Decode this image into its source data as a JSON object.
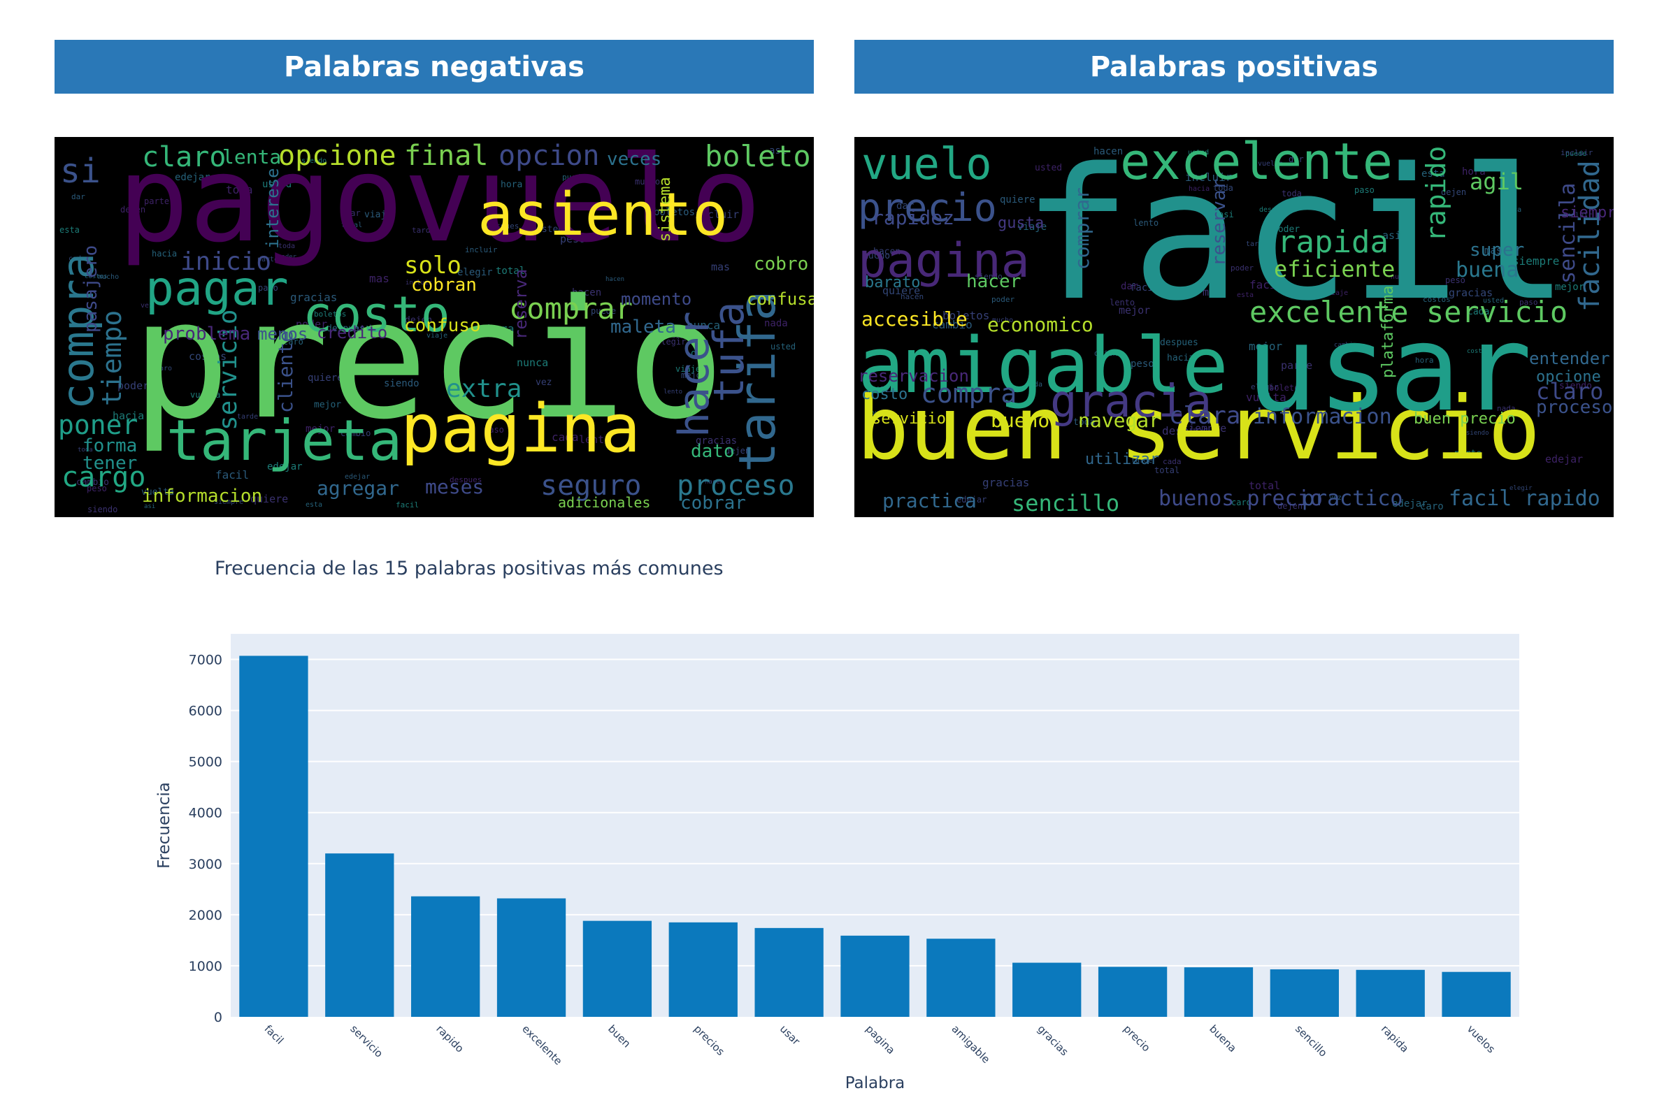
{
  "panels": {
    "negative_title": "Palabras negativas",
    "positive_title": "Palabras positivas"
  },
  "wordclouds": {
    "negative": [
      {
        "t": "pagovuelo",
        "c": "#440154"
      },
      {
        "t": "precio",
        "c": "#5ec962"
      },
      {
        "t": "asiento",
        "c": "#fde725"
      },
      {
        "t": "pagina",
        "c": "#fde725"
      },
      {
        "t": "tarjeta",
        "c": "#35b779"
      },
      {
        "t": "costo",
        "c": "#35b779"
      },
      {
        "t": "pagar",
        "c": "#21a585"
      },
      {
        "t": "compra",
        "c": "#2a788e"
      },
      {
        "t": "tarifa",
        "c": "#31688e"
      },
      {
        "t": "hacer",
        "c": "#3b528b"
      },
      {
        "t": "tufa",
        "c": "#3b528b"
      },
      {
        "t": "comprar",
        "c": "#7ad151"
      },
      {
        "t": "opcione",
        "c": "#b5de2b"
      },
      {
        "t": "final",
        "c": "#7ad151"
      },
      {
        "t": "opcion",
        "c": "#3e4a89"
      },
      {
        "t": "boleto",
        "c": "#5ec962"
      },
      {
        "t": "claro",
        "c": "#35b779"
      },
      {
        "t": "si",
        "c": "#3b528b"
      },
      {
        "t": "tiempo",
        "c": "#2c728e"
      },
      {
        "t": "servicio",
        "c": "#21918c"
      },
      {
        "t": "poner",
        "c": "#1f9e89"
      },
      {
        "t": "cargo",
        "c": "#22a884"
      },
      {
        "t": "proceso",
        "c": "#2a788e"
      },
      {
        "t": "seguro",
        "c": "#3b528b"
      },
      {
        "t": "inicio",
        "c": "#3e4a89"
      },
      {
        "t": "solo",
        "c": "#d8e219"
      },
      {
        "t": "extra",
        "c": "#21918c"
      },
      {
        "t": "informacion",
        "c": "#b5de2b"
      },
      {
        "t": "agregar",
        "c": "#31688e"
      },
      {
        "t": "meses",
        "c": "#3e4a89"
      },
      {
        "t": "cobrar",
        "c": "#2c728e"
      },
      {
        "t": "momento",
        "c": "#3e4a89"
      },
      {
        "t": "maleta",
        "c": "#31688e"
      },
      {
        "t": "dato",
        "c": "#35b779"
      },
      {
        "t": "confuso",
        "c": "#d8e219"
      },
      {
        "t": "credito",
        "c": "#482878"
      },
      {
        "t": "cobro",
        "c": "#7ad151"
      },
      {
        "t": "lenta",
        "c": "#35b779"
      },
      {
        "t": "veces",
        "c": "#2c728e"
      },
      {
        "t": "problema",
        "c": "#482878"
      },
      {
        "t": "cliente",
        "c": "#3b528b"
      },
      {
        "t": "reserva",
        "c": "#482878"
      },
      {
        "t": "tener",
        "c": "#21918c"
      },
      {
        "t": "forma",
        "c": "#21918c"
      },
      {
        "t": "cobran",
        "c": "#fde725"
      },
      {
        "t": "confusa",
        "c": "#b5de2b"
      },
      {
        "t": "menos",
        "c": "#3b528b"
      },
      {
        "t": "adicionales",
        "c": "#7ad151"
      },
      {
        "t": "pasajero",
        "c": "#3e4a89"
      },
      {
        "t": "interese",
        "c": "#2c728e"
      },
      {
        "t": "sistema",
        "c": "#b5de2b"
      }
    ],
    "positive": [
      {
        "t": "facil",
        "c": "#21918c"
      },
      {
        "t": "buen servicio",
        "c": "#d8e219"
      },
      {
        "t": "usar",
        "c": "#1f9e89"
      },
      {
        "t": "amigable",
        "c": "#22a884"
      },
      {
        "t": "excelente",
        "c": "#35b779"
      },
      {
        "t": "vuelo",
        "c": "#22a884"
      },
      {
        "t": "precio",
        "c": "#3b528b"
      },
      {
        "t": "pagina",
        "c": "#482878"
      },
      {
        "t": "gracia",
        "c": "#443983"
      },
      {
        "t": "excelente servicio",
        "c": "#5ec962"
      },
      {
        "t": "rapida",
        "c": "#35b779"
      },
      {
        "t": "eficiente",
        "c": "#7ad151"
      },
      {
        "t": "facilidad",
        "c": "#31688e"
      },
      {
        "t": "rapido",
        "c": "#35b779"
      },
      {
        "t": "agil",
        "c": "#5ec962"
      },
      {
        "t": "sencilla",
        "c": "#3e4a89"
      },
      {
        "t": "buena",
        "c": "#2a788e"
      },
      {
        "t": "super",
        "c": "#2c728e"
      },
      {
        "t": "rapidez",
        "c": "#3e4a89"
      },
      {
        "t": "reservar",
        "c": "#3b528b"
      },
      {
        "t": "comprar",
        "c": "#31688e"
      },
      {
        "t": "hacer",
        "c": "#5ec962"
      },
      {
        "t": "barato",
        "c": "#2a788e"
      },
      {
        "t": "accesible",
        "c": "#fde725"
      },
      {
        "t": "economico",
        "c": "#b5de2b"
      },
      {
        "t": "reservacion",
        "c": "#482878"
      },
      {
        "t": "compra",
        "c": "#3b528b"
      },
      {
        "t": "bueno",
        "c": "#d8e219"
      },
      {
        "t": "navegar",
        "c": "#b5de2b"
      },
      {
        "t": "clara",
        "c": "#3e4a89"
      },
      {
        "t": "informacion",
        "c": "#3b528b"
      },
      {
        "t": "buen precio",
        "c": "#7ad151"
      },
      {
        "t": "costo",
        "c": "#2c728e"
      },
      {
        "t": "servicio",
        "c": "#d8e219"
      },
      {
        "t": "practica",
        "c": "#31688e"
      },
      {
        "t": "sencillo",
        "c": "#35b779"
      },
      {
        "t": "buenos precio",
        "c": "#3e4a89"
      },
      {
        "t": "practico",
        "c": "#3b528b"
      },
      {
        "t": "facil rapido",
        "c": "#31688e"
      },
      {
        "t": "claro",
        "c": "#3e4a89"
      },
      {
        "t": "proceso",
        "c": "#3b528b"
      },
      {
        "t": "entender",
        "c": "#31688e"
      },
      {
        "t": "opcione",
        "c": "#2c728e"
      },
      {
        "t": "plataforma",
        "c": "#5ec962"
      },
      {
        "t": "utilizar",
        "c": "#31688e"
      },
      {
        "t": "gusta",
        "c": "#443983"
      },
      {
        "t": "siempre",
        "c": "#482878"
      }
    ]
  },
  "chart_data": {
    "type": "bar",
    "title": "Frecuencia de las 15 palabras positivas más comunes",
    "xlabel": "Palabra",
    "ylabel": "Frecuencia",
    "categories": [
      "facil",
      "servicio",
      "rapido",
      "excelente",
      "buen",
      "precios",
      "usar",
      "pagina",
      "amigable",
      "gracias",
      "precio",
      "buena",
      "sencillo",
      "rapida",
      "vuelos"
    ],
    "values": [
      7070,
      3200,
      2360,
      2320,
      1880,
      1850,
      1740,
      1590,
      1530,
      1060,
      980,
      970,
      930,
      920,
      880
    ],
    "ylim": [
      0,
      7500
    ],
    "yticks": [
      0,
      1000,
      2000,
      3000,
      4000,
      5000,
      6000,
      7000
    ],
    "bar_color": "#0b79bd",
    "plot_background": "#e5ecf6",
    "grid": true
  }
}
